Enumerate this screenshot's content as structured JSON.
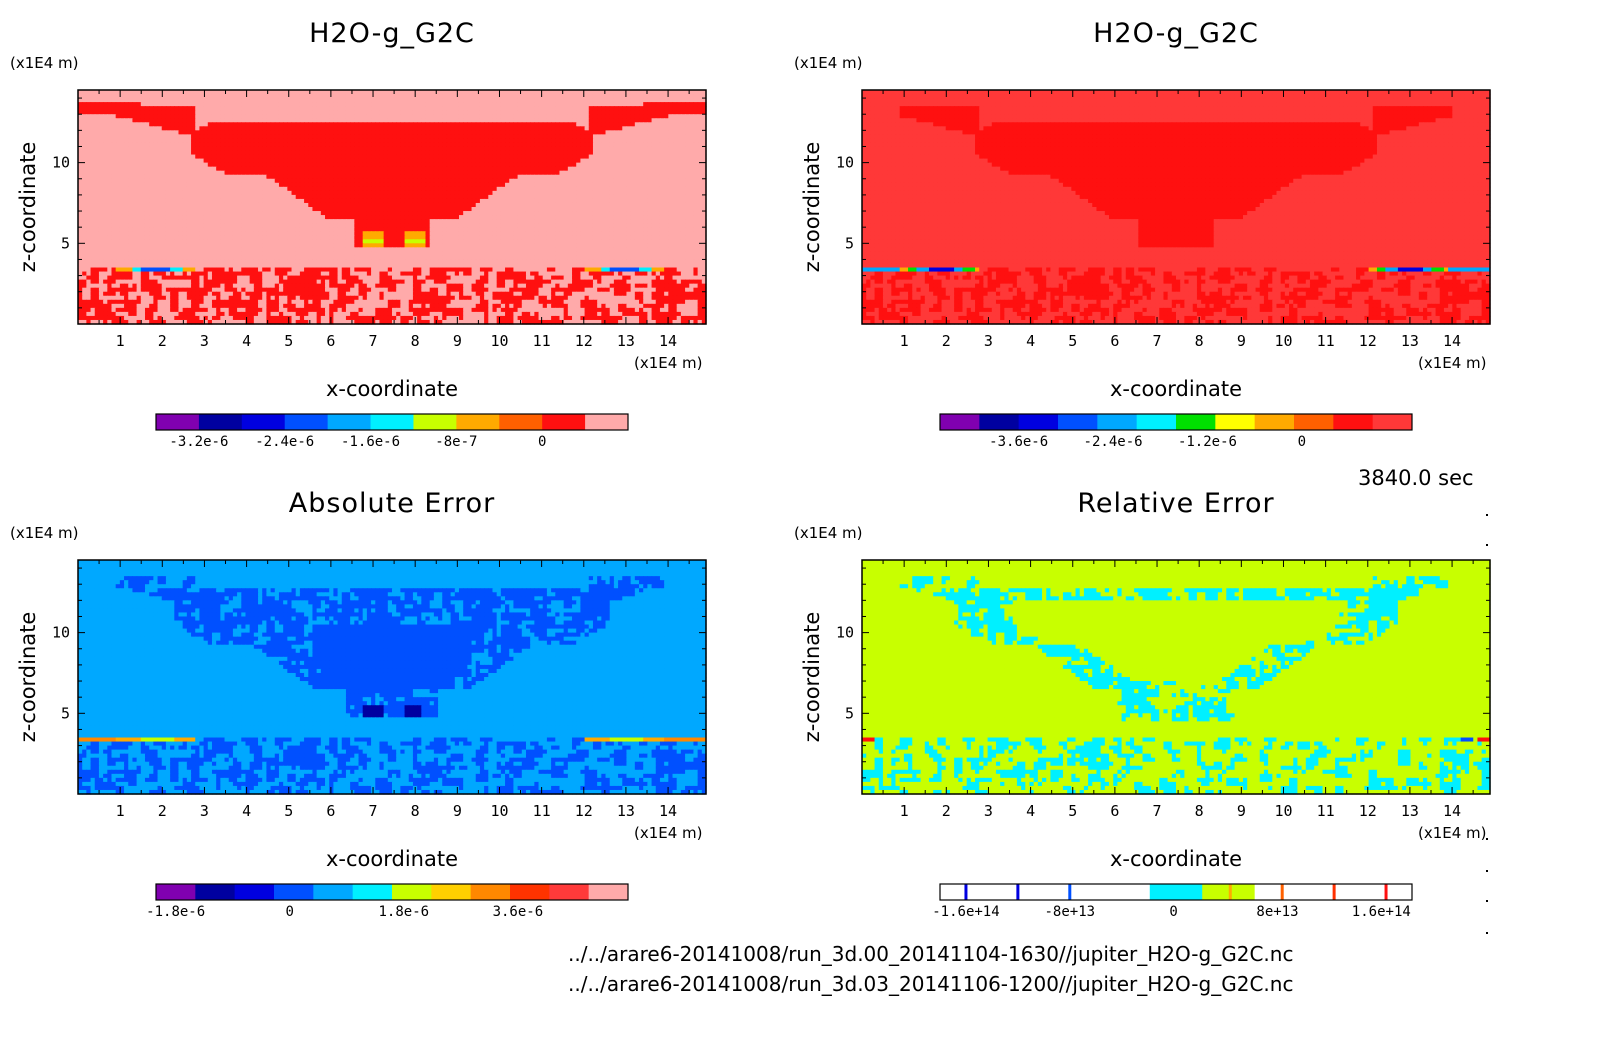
{
  "chart_data": [
    {
      "type": "heatmap",
      "title": "H2O-g_G2C",
      "xlabel": "x-coordinate",
      "ylabel": "z-coordinate",
      "x_unit": "(x1E4 m)",
      "y_unit": "(x1E4 m)",
      "x_ticks": [
        "1",
        "2",
        "3",
        "4",
        "5",
        "6",
        "7",
        "8",
        "9",
        "10",
        "11",
        "12",
        "13",
        "14"
      ],
      "y_ticks": [
        "5",
        "10"
      ],
      "xlim": [
        0,
        14.9
      ],
      "ylim": [
        0,
        14.5
      ],
      "field": "h2o_a",
      "colorbar": {
        "colors": [
          "#8000b0",
          "#0000a0",
          "#0000e0",
          "#0050ff",
          "#00a8ff",
          "#00f0ff",
          "#c8ff00",
          "#ffaa00",
          "#ff6000",
          "#ff1010",
          "#ffaaaa"
        ],
        "labels": [
          "-3.2e-6",
          "-2.4e-6",
          "-1.6e-6",
          "-8e-7",
          "0"
        ]
      }
    },
    {
      "type": "heatmap",
      "title": "H2O-g_G2C",
      "xlabel": "x-coordinate",
      "ylabel": "z-coordinate",
      "x_unit": "(x1E4 m)",
      "y_unit": "(x1E4 m)",
      "x_ticks": [
        "1",
        "2",
        "3",
        "4",
        "5",
        "6",
        "7",
        "8",
        "9",
        "10",
        "11",
        "12",
        "13",
        "14"
      ],
      "y_ticks": [
        "5",
        "10"
      ],
      "xlim": [
        0,
        14.9
      ],
      "ylim": [
        0,
        14.5
      ],
      "field": "h2o_b",
      "colorbar": {
        "colors": [
          "#8000b0",
          "#0000a0",
          "#0000e0",
          "#0050ff",
          "#00a8ff",
          "#00f0ff",
          "#00e000",
          "#ffff00",
          "#ffaa00",
          "#ff6000",
          "#ff1010",
          "#ff3838"
        ],
        "labels": [
          "-3.6e-6",
          "-2.4e-6",
          "-1.2e-6",
          "0"
        ]
      }
    },
    {
      "type": "heatmap",
      "title": "Absolute Error",
      "xlabel": "x-coordinate",
      "ylabel": "z-coordinate",
      "x_unit": "(x1E4 m)",
      "y_unit": "(x1E4 m)",
      "x_ticks": [
        "1",
        "2",
        "3",
        "4",
        "5",
        "6",
        "7",
        "8",
        "9",
        "10",
        "11",
        "12",
        "13",
        "14"
      ],
      "y_ticks": [
        "5",
        "10"
      ],
      "xlim": [
        0,
        14.9
      ],
      "ylim": [
        0,
        14.5
      ],
      "field": "abs",
      "colorbar": {
        "colors": [
          "#8000b0",
          "#0000a0",
          "#0000e0",
          "#0050ff",
          "#00a8ff",
          "#00f0ff",
          "#c8ff00",
          "#ffd000",
          "#ff8800",
          "#ff3300",
          "#ff3a3a",
          "#ffaaaa"
        ],
        "labels": [
          "-1.8e-6",
          "0",
          "1.8e-6",
          "3.6e-6"
        ]
      }
    },
    {
      "type": "heatmap",
      "title": "Relative Error",
      "xlabel": "x-coordinate",
      "ylabel": "z-coordinate",
      "x_unit": "(x1E4 m)",
      "y_unit": "(x1E4 m)",
      "x_ticks": [
        "1",
        "2",
        "3",
        "4",
        "5",
        "6",
        "7",
        "8",
        "9",
        "10",
        "11",
        "12",
        "13",
        "14"
      ],
      "y_ticks": [
        "5",
        "10"
      ],
      "xlim": [
        0,
        14.9
      ],
      "ylim": [
        0,
        14.5
      ],
      "field": "rel",
      "colorbar": {
        "colors": [
          "#ffffff",
          "#ffffff",
          "#ffffff",
          "#ffffff",
          "#00f0ff",
          "#c8ff00",
          "#ffffff",
          "#ffffff",
          "#ffffff"
        ],
        "labels": [
          "-1.6e+14",
          "-8e+13",
          "0",
          "8e+13",
          "1.6e+14"
        ]
      }
    }
  ],
  "time_label": "3840.0 sec",
  "files": [
    "../../arare6-20141008/run_3d.00_20141104-1630//jupiter_H2O-g_G2C.nc",
    "../../arare6-20141008/run_3d.03_20141106-1200//jupiter_H2O-g_G2C.nc"
  ]
}
